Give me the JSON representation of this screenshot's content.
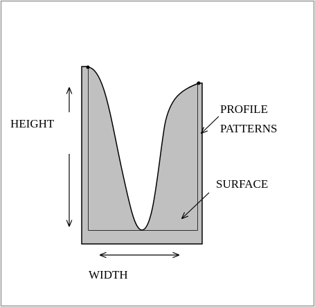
{
  "labels": {
    "height": "HEIGHT",
    "profile": [
      "PROFILE",
      "PATTERNS"
    ],
    "surface": "SURFACE",
    "width": "WIDTH"
  }
}
